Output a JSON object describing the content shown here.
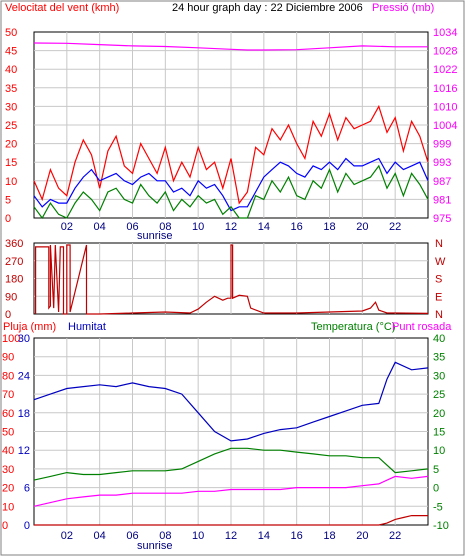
{
  "chart_data": [
    {
      "type": "line",
      "panel": "wind",
      "title": "24 hour graph day : 22 Diciembre 2006",
      "left_title": "Velocitat del vent (kmh)",
      "right_title": "Pressió (mb)",
      "x_ticks": [
        "02",
        "04",
        "06",
        "08",
        "10",
        "12",
        "14",
        "16",
        "18",
        "20",
        "22"
      ],
      "x_sublabel": "sunrise",
      "y_left": {
        "ticks": [
          "0",
          "5",
          "10",
          "15",
          "20",
          "25",
          "30",
          "35",
          "40",
          "45",
          "50"
        ],
        "range": [
          0,
          50
        ]
      },
      "y_right": {
        "ticks": [
          "975",
          "981",
          "987",
          "993",
          "999",
          "1004",
          "1010",
          "1016",
          "1022",
          "1028",
          "1034"
        ],
        "range": [
          975,
          1034
        ]
      },
      "series": [
        {
          "color": "#ff00ff",
          "axis": "right",
          "x": [
            0,
            2,
            4,
            6,
            8,
            10,
            12,
            13,
            14,
            16,
            18,
            20,
            22,
            24
          ],
          "values": [
            1030.5,
            1030.4,
            1030.0,
            1029.6,
            1029.4,
            1029.0,
            1028.5,
            1028.3,
            1028.3,
            1028.4,
            1029.0,
            1029.6,
            1029.3,
            1029.3
          ]
        },
        {
          "color": "#ff0000",
          "axis": "left",
          "x": [
            0,
            0.5,
            1,
            1.5,
            2,
            2.5,
            3,
            3.5,
            4,
            4.5,
            5,
            5.5,
            6,
            6.5,
            7,
            7.5,
            8,
            8.5,
            9,
            9.5,
            10,
            10.5,
            11,
            11.5,
            12,
            12.5,
            13,
            13.5,
            14,
            14.5,
            15,
            15.5,
            16,
            16.5,
            17,
            17.5,
            18,
            18.5,
            19,
            19.5,
            20,
            20.5,
            21,
            21.5,
            22,
            22.5,
            23,
            23.5,
            24
          ],
          "values": [
            10,
            5,
            13,
            8,
            6,
            15,
            21,
            17,
            8,
            18,
            22,
            14,
            12,
            20,
            16,
            12,
            19,
            10,
            15,
            11,
            19,
            13,
            15,
            8,
            16,
            4,
            7,
            19,
            17,
            24,
            21,
            25,
            20,
            16,
            26,
            22,
            28,
            21,
            27,
            24,
            25,
            26,
            30,
            23,
            27,
            18,
            26,
            22,
            15
          ]
        },
        {
          "color": "#0000ff",
          "axis": "left",
          "x": [
            0,
            0.5,
            1,
            1.5,
            2,
            2.5,
            3,
            3.5,
            4,
            4.5,
            5,
            5.5,
            6,
            6.5,
            7,
            7.5,
            8,
            8.5,
            9,
            9.5,
            10,
            10.5,
            11,
            11.5,
            12,
            12.5,
            13,
            13.5,
            14,
            14.5,
            15,
            15.5,
            16,
            16.5,
            17,
            17.5,
            18,
            18.5,
            19,
            19.5,
            20,
            20.5,
            21,
            21.5,
            22,
            22.5,
            23,
            23.5,
            24
          ],
          "values": [
            6,
            3,
            5,
            4,
            4,
            8,
            11,
            13,
            10,
            11,
            12,
            10,
            9,
            11,
            12,
            10,
            10,
            7,
            8,
            6,
            10,
            8,
            9,
            6,
            2,
            3,
            3,
            7,
            11,
            13,
            15,
            14,
            12,
            11,
            14,
            13,
            15,
            13,
            16,
            14,
            14,
            15,
            16,
            12,
            15,
            13,
            14,
            15,
            10
          ]
        },
        {
          "color": "#008000",
          "axis": "left",
          "x": [
            0,
            0.5,
            1,
            1.5,
            2,
            2.5,
            3,
            3.5,
            4,
            4.5,
            5,
            5.5,
            6,
            6.5,
            7,
            7.5,
            8,
            8.5,
            9,
            9.5,
            10,
            10.5,
            11,
            11.5,
            12,
            12.5,
            13,
            13.5,
            14,
            14.5,
            15,
            15.5,
            16,
            16.5,
            17,
            17.5,
            18,
            18.5,
            19,
            19.5,
            20,
            20.5,
            21,
            21.5,
            22,
            22.5,
            23,
            23.5,
            24
          ],
          "values": [
            3,
            0,
            4,
            1,
            0,
            4,
            7,
            5,
            2,
            7,
            8,
            5,
            4,
            9,
            6,
            4,
            7,
            2,
            5,
            3,
            6,
            4,
            5,
            1,
            3,
            0,
            0,
            6,
            5,
            10,
            7,
            11,
            6,
            5,
            10,
            8,
            13,
            7,
            12,
            9,
            10,
            11,
            14,
            8,
            12,
            6,
            12,
            9,
            5
          ]
        }
      ]
    },
    {
      "type": "line",
      "panel": "direction",
      "x_ticks": [
        "02",
        "04",
        "06",
        "08",
        "10",
        "12",
        "14",
        "16",
        "18",
        "20",
        "22"
      ],
      "y_left": {
        "ticks": [
          "0",
          "90",
          "180",
          "270",
          "360"
        ],
        "range": [
          0,
          360
        ]
      },
      "y_right": {
        "ticks": [
          "N",
          "E",
          "S",
          "W",
          "N"
        ]
      },
      "series": [
        {
          "color": "#c00000",
          "x": [
            0.1,
            0.1,
            0.9,
            0.9,
            1.0,
            1.0,
            1.2,
            1.3,
            1.5,
            1.6,
            1.8,
            1.8,
            2.0,
            2.0,
            2.2,
            2.2,
            3.2,
            3.2,
            4.0,
            6,
            8,
            9.5,
            10,
            10.5,
            11,
            11.5,
            11.8,
            12.0,
            12.0,
            12.1,
            12.1,
            12.5,
            13.0,
            13.2,
            14,
            16,
            18,
            20,
            20.5,
            20.8,
            21.0,
            21.5,
            22,
            24
          ],
          "values": [
            0,
            340,
            340,
            30,
            40,
            350,
            30,
            350,
            10,
            340,
            340,
            0,
            0,
            350,
            350,
            10,
            350,
            0,
            0,
            5,
            10,
            5,
            25,
            60,
            90,
            70,
            80,
            80,
            350,
            350,
            80,
            95,
            90,
            30,
            5,
            5,
            10,
            15,
            30,
            60,
            20,
            5,
            5,
            3
          ]
        }
      ]
    },
    {
      "type": "line",
      "panel": "humidity-temperature",
      "left_title": "Pluja (mm)",
      "left_title2": "Humitat",
      "right_title": "Temperatura (°C)",
      "right_title2": "Punt rosada",
      "x_ticks": [
        "02",
        "04",
        "06",
        "08",
        "10",
        "12",
        "14",
        "16",
        "18",
        "20",
        "22"
      ],
      "x_sublabel": "sunrise",
      "y_left": {
        "ticks": [
          "0",
          "10",
          "20",
          "30",
          "40",
          "50",
          "60",
          "70",
          "80",
          "90",
          "100"
        ],
        "range": [
          0,
          100
        ]
      },
      "y_left2": {
        "ticks": [
          "0",
          "6",
          "12",
          "18",
          "24",
          "30"
        ]
      },
      "y_right": {
        "ticks": [
          "-10",
          "-5",
          "0",
          "5",
          "10",
          "15",
          "20",
          "25",
          "30",
          "35",
          "40"
        ],
        "range": [
          -10,
          40
        ]
      },
      "series": [
        {
          "color": "#0000c0",
          "axis": "left",
          "x": [
            0,
            1,
            2,
            3,
            4,
            5,
            6,
            7,
            8,
            9,
            10,
            11,
            12,
            13,
            14,
            15,
            16,
            17,
            18,
            19,
            20,
            21,
            21.5,
            22,
            23,
            24
          ],
          "values": [
            67,
            70,
            73,
            74,
            75,
            74,
            76,
            74,
            73,
            70,
            60,
            50,
            45,
            46,
            49,
            51,
            52,
            55,
            58,
            61,
            64,
            65,
            78,
            87,
            83,
            84
          ]
        },
        {
          "color": "#008000",
          "axis": "right",
          "x": [
            0,
            1,
            2,
            3,
            4,
            5,
            6,
            7,
            8,
            9,
            10,
            11,
            12,
            13,
            14,
            15,
            16,
            17,
            18,
            19,
            20,
            21,
            22,
            23,
            24
          ],
          "values": [
            2,
            3,
            4,
            3.5,
            3.5,
            4,
            4.5,
            4.5,
            4.5,
            5,
            7,
            9,
            10.5,
            10.5,
            10,
            10,
            9.5,
            9,
            8.5,
            8.5,
            8,
            8,
            4,
            4.5,
            5
          ]
        },
        {
          "color": "#ff00ff",
          "axis": "right",
          "x": [
            0,
            1,
            2,
            3,
            4,
            5,
            6,
            7,
            8,
            9,
            10,
            11,
            12,
            13,
            14,
            15,
            16,
            17,
            18,
            19,
            20,
            21,
            22,
            23,
            24
          ],
          "values": [
            -5,
            -4,
            -3,
            -2.5,
            -2,
            -2,
            -1.5,
            -1.5,
            -1.5,
            -1.5,
            -1,
            -1,
            -0.5,
            -0.5,
            -0.5,
            -0.5,
            0,
            0,
            0,
            0,
            0.5,
            1,
            3,
            2.5,
            3
          ]
        },
        {
          "color": "#c00000",
          "axis": "left",
          "x": [
            0,
            21,
            21.5,
            22,
            22.5,
            23,
            23.5,
            24
          ],
          "values": [
            0,
            0,
            1,
            3,
            4,
            5,
            5,
            5
          ]
        }
      ]
    }
  ]
}
